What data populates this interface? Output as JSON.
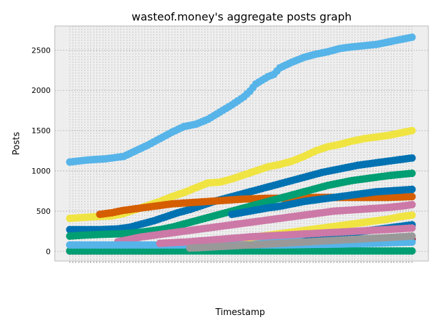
{
  "chart_data": {
    "type": "scatter",
    "title": "wasteof.money's aggregate posts graph",
    "xlabel": "Timestamp",
    "ylabel": "Posts",
    "ylim": [
      -120,
      2800
    ],
    "yticks": [
      0,
      500,
      1000,
      1500,
      2000,
      2500
    ],
    "grid": true,
    "legend": "none",
    "x_categories_count": 110,
    "series": [
      {
        "color": "#56B4E9",
        "values": [
          [
            0,
            1110
          ],
          [
            6,
            1135
          ],
          [
            12,
            1150
          ],
          [
            18,
            1180
          ],
          [
            22,
            1250
          ],
          [
            26,
            1320
          ],
          [
            30,
            1400
          ],
          [
            34,
            1480
          ],
          [
            38,
            1550
          ],
          [
            42,
            1580
          ],
          [
            46,
            1640
          ],
          [
            50,
            1730
          ],
          [
            54,
            1820
          ],
          [
            58,
            1920
          ],
          [
            60,
            1990
          ],
          [
            62,
            2080
          ],
          [
            66,
            2170
          ],
          [
            68,
            2200
          ],
          [
            70,
            2280
          ],
          [
            74,
            2350
          ],
          [
            78,
            2410
          ],
          [
            82,
            2450
          ],
          [
            86,
            2480
          ],
          [
            90,
            2520
          ],
          [
            94,
            2540
          ],
          [
            98,
            2555
          ],
          [
            102,
            2570
          ],
          [
            106,
            2600
          ],
          [
            110,
            2630
          ],
          [
            114,
            2660
          ]
        ]
      },
      {
        "color": "#F0E442",
        "values": [
          [
            0,
            410
          ],
          [
            8,
            430
          ],
          [
            14,
            440
          ],
          [
            18,
            470
          ],
          [
            22,
            520
          ],
          [
            26,
            570
          ],
          [
            30,
            620
          ],
          [
            34,
            680
          ],
          [
            38,
            730
          ],
          [
            42,
            790
          ],
          [
            46,
            850
          ],
          [
            50,
            860
          ],
          [
            54,
            900
          ],
          [
            58,
            950
          ],
          [
            62,
            1000
          ],
          [
            66,
            1050
          ],
          [
            70,
            1080
          ],
          [
            74,
            1120
          ],
          [
            78,
            1180
          ],
          [
            82,
            1250
          ],
          [
            86,
            1300
          ],
          [
            90,
            1330
          ],
          [
            94,
            1370
          ],
          [
            98,
            1400
          ],
          [
            102,
            1420
          ],
          [
            106,
            1440
          ],
          [
            110,
            1470
          ],
          [
            114,
            1500
          ]
        ]
      },
      {
        "color": "#0072B2",
        "values": [
          [
            0,
            270
          ],
          [
            10,
            270
          ],
          [
            16,
            280
          ],
          [
            20,
            300
          ],
          [
            24,
            340
          ],
          [
            28,
            380
          ],
          [
            32,
            430
          ],
          [
            36,
            480
          ],
          [
            40,
            520
          ],
          [
            44,
            570
          ],
          [
            48,
            620
          ],
          [
            52,
            660
          ],
          [
            56,
            700
          ],
          [
            60,
            740
          ],
          [
            64,
            780
          ],
          [
            68,
            820
          ],
          [
            72,
            860
          ],
          [
            76,
            900
          ],
          [
            80,
            940
          ],
          [
            84,
            980
          ],
          [
            88,
            1010
          ],
          [
            92,
            1040
          ],
          [
            96,
            1070
          ],
          [
            100,
            1090
          ],
          [
            104,
            1110
          ],
          [
            110,
            1140
          ],
          [
            114,
            1160
          ]
        ]
      },
      {
        "color": "#D55E00",
        "values": [
          [
            10,
            460
          ],
          [
            14,
            480
          ],
          [
            18,
            510
          ],
          [
            22,
            530
          ],
          [
            26,
            550
          ],
          [
            30,
            570
          ],
          [
            34,
            590
          ],
          [
            38,
            600
          ],
          [
            42,
            610
          ],
          [
            46,
            620
          ],
          [
            50,
            630
          ],
          [
            54,
            640
          ],
          [
            58,
            650
          ],
          [
            62,
            655
          ],
          [
            66,
            660
          ],
          [
            70,
            660
          ],
          [
            74,
            660
          ],
          [
            78,
            665
          ],
          [
            82,
            670
          ],
          [
            86,
            670
          ],
          [
            90,
            670
          ],
          [
            94,
            670
          ],
          [
            98,
            670
          ],
          [
            102,
            670
          ],
          [
            106,
            670
          ],
          [
            110,
            675
          ],
          [
            114,
            680
          ]
        ]
      },
      {
        "color": "#009E73",
        "values": [
          [
            0,
            190
          ],
          [
            4,
            200
          ],
          [
            10,
            210
          ],
          [
            14,
            215
          ],
          [
            18,
            220
          ],
          [
            22,
            230
          ],
          [
            26,
            250
          ],
          [
            30,
            270
          ],
          [
            34,
            300
          ],
          [
            38,
            340
          ],
          [
            42,
            380
          ],
          [
            46,
            420
          ],
          [
            50,
            460
          ],
          [
            54,
            500
          ],
          [
            58,
            540
          ],
          [
            62,
            580
          ],
          [
            66,
            620
          ],
          [
            70,
            660
          ],
          [
            74,
            700
          ],
          [
            78,
            740
          ],
          [
            82,
            780
          ],
          [
            86,
            820
          ],
          [
            90,
            850
          ],
          [
            94,
            880
          ],
          [
            98,
            900
          ],
          [
            102,
            920
          ],
          [
            106,
            940
          ],
          [
            110,
            955
          ],
          [
            114,
            970
          ]
        ]
      },
      {
        "color": "#CC79A7",
        "values": [
          [
            16,
            120
          ],
          [
            20,
            150
          ],
          [
            24,
            180
          ],
          [
            28,
            200
          ],
          [
            32,
            220
          ],
          [
            36,
            240
          ],
          [
            40,
            260
          ],
          [
            44,
            280
          ],
          [
            48,
            300
          ],
          [
            52,
            320
          ],
          [
            56,
            340
          ],
          [
            60,
            360
          ],
          [
            64,
            380
          ],
          [
            68,
            400
          ],
          [
            72,
            420
          ],
          [
            76,
            440
          ],
          [
            80,
            460
          ],
          [
            84,
            480
          ],
          [
            88,
            500
          ],
          [
            92,
            510
          ],
          [
            96,
            520
          ],
          [
            100,
            530
          ],
          [
            104,
            540
          ],
          [
            110,
            560
          ],
          [
            114,
            580
          ]
        ]
      },
      {
        "color": "#0072B2",
        "values": [
          [
            54,
            460
          ],
          [
            60,
            500
          ],
          [
            66,
            540
          ],
          [
            70,
            560
          ],
          [
            74,
            590
          ],
          [
            78,
            620
          ],
          [
            82,
            640
          ],
          [
            86,
            660
          ],
          [
            90,
            680
          ],
          [
            94,
            700
          ],
          [
            98,
            720
          ],
          [
            102,
            740
          ],
          [
            106,
            750
          ],
          [
            110,
            760
          ],
          [
            114,
            770
          ]
        ]
      },
      {
        "color": "#A50026",
        "values": [
          [
            0,
            5
          ],
          [
            10,
            5
          ],
          [
            20,
            5
          ],
          [
            30,
            5
          ],
          [
            40,
            10
          ],
          [
            50,
            20
          ],
          [
            60,
            40
          ],
          [
            70,
            60
          ],
          [
            80,
            80
          ],
          [
            90,
            100
          ],
          [
            100,
            120
          ],
          [
            110,
            140
          ],
          [
            114,
            150
          ]
        ]
      },
      {
        "color": "#56B4E9",
        "values": [
          [
            10,
            5
          ],
          [
            16,
            10
          ],
          [
            20,
            20
          ],
          [
            24,
            40
          ],
          [
            28,
            60
          ],
          [
            32,
            80
          ],
          [
            36,
            100
          ],
          [
            40,
            110
          ],
          [
            44,
            120
          ],
          [
            48,
            130
          ],
          [
            52,
            140
          ],
          [
            56,
            150
          ],
          [
            60,
            160
          ],
          [
            64,
            170
          ],
          [
            68,
            180
          ],
          [
            72,
            190
          ],
          [
            76,
            200
          ],
          [
            80,
            210
          ],
          [
            84,
            220
          ],
          [
            88,
            230
          ],
          [
            92,
            240
          ],
          [
            96,
            250
          ],
          [
            100,
            260
          ],
          [
            104,
            270
          ],
          [
            110,
            280
          ],
          [
            114,
            300
          ]
        ]
      },
      {
        "color": "#F0E442",
        "values": [
          [
            26,
            5
          ],
          [
            30,
            20
          ],
          [
            34,
            40
          ],
          [
            38,
            60
          ],
          [
            42,
            80
          ],
          [
            46,
            100
          ],
          [
            50,
            120
          ],
          [
            54,
            140
          ],
          [
            58,
            160
          ],
          [
            62,
            180
          ],
          [
            66,
            200
          ],
          [
            70,
            220
          ],
          [
            74,
            240
          ],
          [
            78,
            260
          ],
          [
            82,
            280
          ],
          [
            86,
            300
          ],
          [
            90,
            320
          ],
          [
            94,
            340
          ],
          [
            98,
            360
          ],
          [
            102,
            380
          ],
          [
            106,
            400
          ],
          [
            110,
            430
          ],
          [
            114,
            450
          ]
        ]
      },
      {
        "color": "#0072B2",
        "values": [
          [
            66,
            10
          ],
          [
            70,
            40
          ],
          [
            74,
            80
          ],
          [
            78,
            120
          ],
          [
            82,
            160
          ],
          [
            86,
            190
          ],
          [
            90,
            210
          ],
          [
            94,
            230
          ],
          [
            98,
            250
          ],
          [
            102,
            270
          ],
          [
            106,
            290
          ],
          [
            110,
            310
          ],
          [
            114,
            330
          ]
        ]
      },
      {
        "color": "#009E73",
        "values": [
          [
            0,
            5
          ],
          [
            20,
            5
          ],
          [
            40,
            5
          ],
          [
            60,
            5
          ],
          [
            80,
            5
          ],
          [
            100,
            5
          ],
          [
            114,
            5
          ]
        ]
      },
      {
        "color": "#56B4E9",
        "values": [
          [
            0,
            80
          ],
          [
            10,
            80
          ],
          [
            20,
            80
          ],
          [
            30,
            80
          ],
          [
            40,
            80
          ],
          [
            50,
            80
          ],
          [
            60,
            80
          ],
          [
            70,
            80
          ],
          [
            80,
            85
          ],
          [
            90,
            90
          ],
          [
            100,
            100
          ],
          [
            110,
            110
          ],
          [
            114,
            115
          ]
        ]
      },
      {
        "color": "#CC79A7",
        "values": [
          [
            30,
            100
          ],
          [
            40,
            120
          ],
          [
            50,
            150
          ],
          [
            60,
            180
          ],
          [
            70,
            200
          ],
          [
            80,
            220
          ],
          [
            90,
            240
          ],
          [
            100,
            260
          ],
          [
            110,
            280
          ],
          [
            114,
            290
          ]
        ]
      },
      {
        "color": "#999999",
        "values": [
          [
            40,
            40
          ],
          [
            50,
            60
          ],
          [
            60,
            80
          ],
          [
            70,
            100
          ],
          [
            80,
            120
          ],
          [
            90,
            140
          ],
          [
            100,
            160
          ],
          [
            110,
            180
          ],
          [
            114,
            190
          ]
        ]
      }
    ]
  }
}
